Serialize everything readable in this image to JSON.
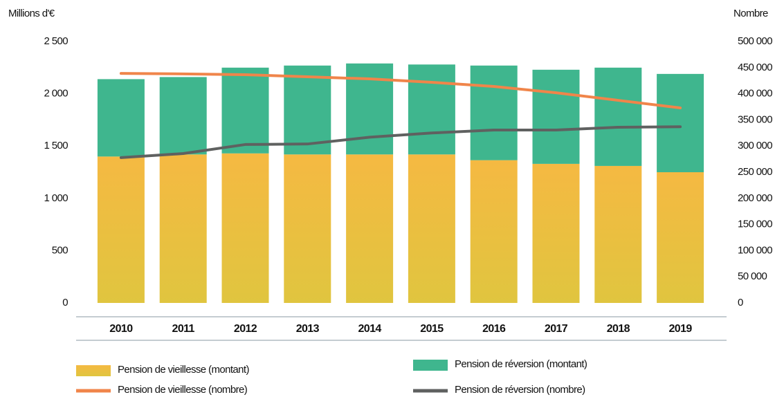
{
  "chart_data": {
    "type": "bar",
    "stacked": true,
    "y_label": "Millions d'€",
    "y2_label": "Nombre",
    "categories": [
      "2010",
      "2011",
      "2012",
      "2013",
      "2014",
      "2015",
      "2016",
      "2017",
      "2018",
      "2019"
    ],
    "series": [
      {
        "name": "Pension de vieillesse (montant)",
        "type": "bar",
        "color": "#f2bd42",
        "values": [
          1400,
          1420,
          1430,
          1420,
          1420,
          1420,
          1365,
          1330,
          1310,
          1250
        ]
      },
      {
        "name": "Pension de réversion (montant)",
        "type": "bar",
        "color": "#3fb68e",
        "values": [
          740,
          740,
          820,
          850,
          870,
          860,
          905,
          900,
          940,
          940
        ]
      },
      {
        "name": "Pension de vieillesse (nombre)",
        "type": "line",
        "axis": "y2",
        "color": "#f0854a",
        "values": [
          439000,
          438000,
          436500,
          432500,
          428500,
          422000,
          414000,
          402000,
          387500,
          373000
        ]
      },
      {
        "name": "Pension de réversion (nombre)",
        "type": "line",
        "axis": "y2",
        "color": "#5f6160",
        "values": [
          278000,
          285700,
          303000,
          304000,
          317000,
          325000,
          330700,
          330700,
          336000,
          337000
        ]
      }
    ],
    "ylim": [
      0,
      2500
    ],
    "yticks": [
      0,
      500,
      {
        "value": 1000,
        "label": "1 000"
      },
      {
        "value": 1500,
        "label": "1 500"
      },
      {
        "value": 2000,
        "label": "2 000"
      },
      {
        "value": 2500,
        "label": "2 500"
      }
    ],
    "y2lim": [
      0,
      500000
    ],
    "y2ticks": [
      0,
      {
        "value": 50000,
        "label": "50 000"
      },
      {
        "value": 100000,
        "label": "100 000"
      },
      {
        "value": 150000,
        "label": "150 000"
      },
      {
        "value": 200000,
        "label": "200 000"
      },
      {
        "value": 250000,
        "label": "250 000"
      },
      {
        "value": 300000,
        "label": "300 000"
      },
      {
        "value": 350000,
        "label": "350 000"
      },
      {
        "value": 400000,
        "label": "400 000"
      },
      {
        "value": 450000,
        "label": "450 000"
      },
      {
        "value": 500000,
        "label": "500 000"
      }
    ]
  }
}
